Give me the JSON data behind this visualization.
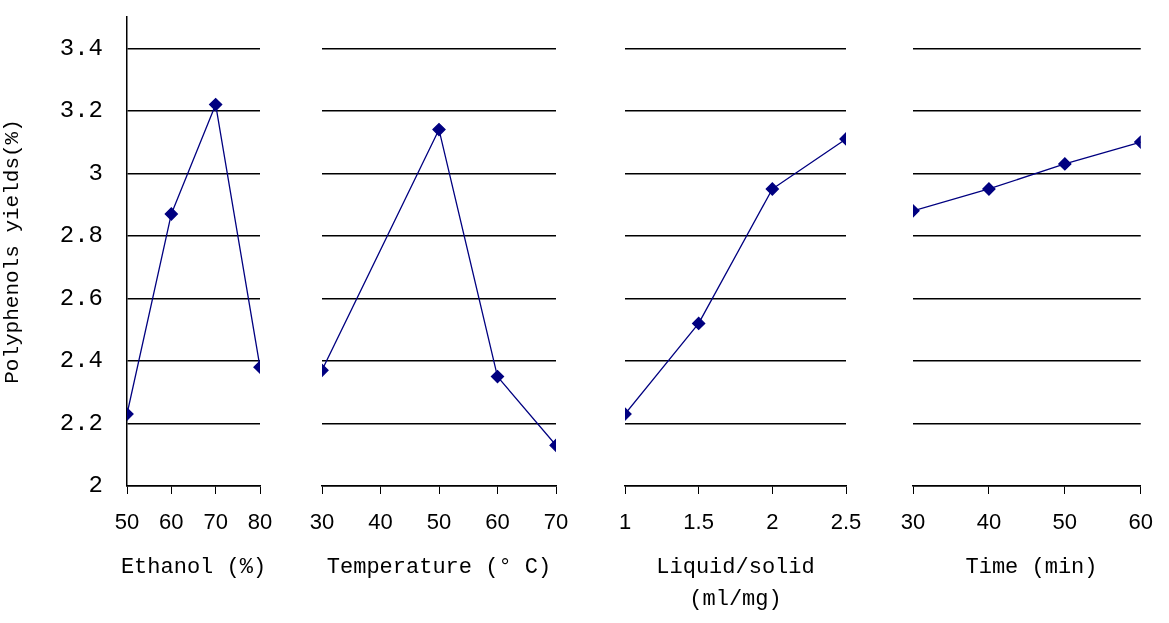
{
  "chart_data": [
    {
      "type": "line",
      "x": [
        50,
        60,
        70,
        80
      ],
      "values": [
        2.23,
        2.87,
        3.22,
        2.38
      ],
      "color": "#000080",
      "marker": "diamond",
      "grid": "y",
      "xlim": [
        50,
        80
      ],
      "xticks": [
        50,
        60,
        70,
        80
      ],
      "ylim": [
        2,
        3.5
      ],
      "yticks": [
        2,
        2.2,
        2.4,
        2.6,
        2.8,
        3,
        3.2,
        3.4
      ],
      "xlabel": "Ethanol (%)",
      "ylabel": "Polyphenols yields(%)"
    },
    {
      "type": "line",
      "x": [
        30,
        40,
        50,
        60,
        70
      ],
      "values": [
        2.37,
        null,
        3.14,
        2.35,
        2.13
      ],
      "color": "#000080",
      "marker": "diamond",
      "grid": "y",
      "xlim": [
        30,
        70
      ],
      "xticks": [
        30,
        40,
        50,
        60,
        70
      ],
      "ylim": [
        2,
        3.4
      ],
      "yticks": [
        2,
        2.2,
        2.4,
        2.6,
        2.8,
        3,
        3.2,
        3.4
      ],
      "xlabel": "Temperature (° C)",
      "tick_labels": "x"
    },
    {
      "type": "line",
      "x": [
        1,
        1.5,
        2,
        2.5
      ],
      "values": [
        2.23,
        2.52,
        2.95,
        3.11
      ],
      "color": "#000080",
      "marker": "diamond",
      "grid": "y",
      "xlim": [
        1,
        2.5
      ],
      "xticks": [
        1,
        1.5,
        2,
        2.5
      ],
      "ylim": [
        2,
        3.4
      ],
      "yticks": [
        2,
        2.2,
        2.4,
        2.6,
        2.8,
        3,
        3.2,
        3.4
      ],
      "xlabel": "Liquid/solid (ml/mg)",
      "tick_labels": "x"
    },
    {
      "type": "line",
      "x": [
        30,
        40,
        50,
        60
      ],
      "values": [
        2.88,
        2.95,
        3.03,
        3.1
      ],
      "color": "#000080",
      "marker": "diamond",
      "grid": "y",
      "xlim": [
        30,
        60
      ],
      "xticks": [
        30,
        40,
        50,
        60
      ],
      "ylim": [
        2,
        3.4
      ],
      "yticks": [
        2,
        2.2,
        2.4,
        2.6,
        2.8,
        3,
        3.2,
        3.4
      ],
      "xlabel": "Time (min)",
      "tick_labels": "x"
    }
  ]
}
